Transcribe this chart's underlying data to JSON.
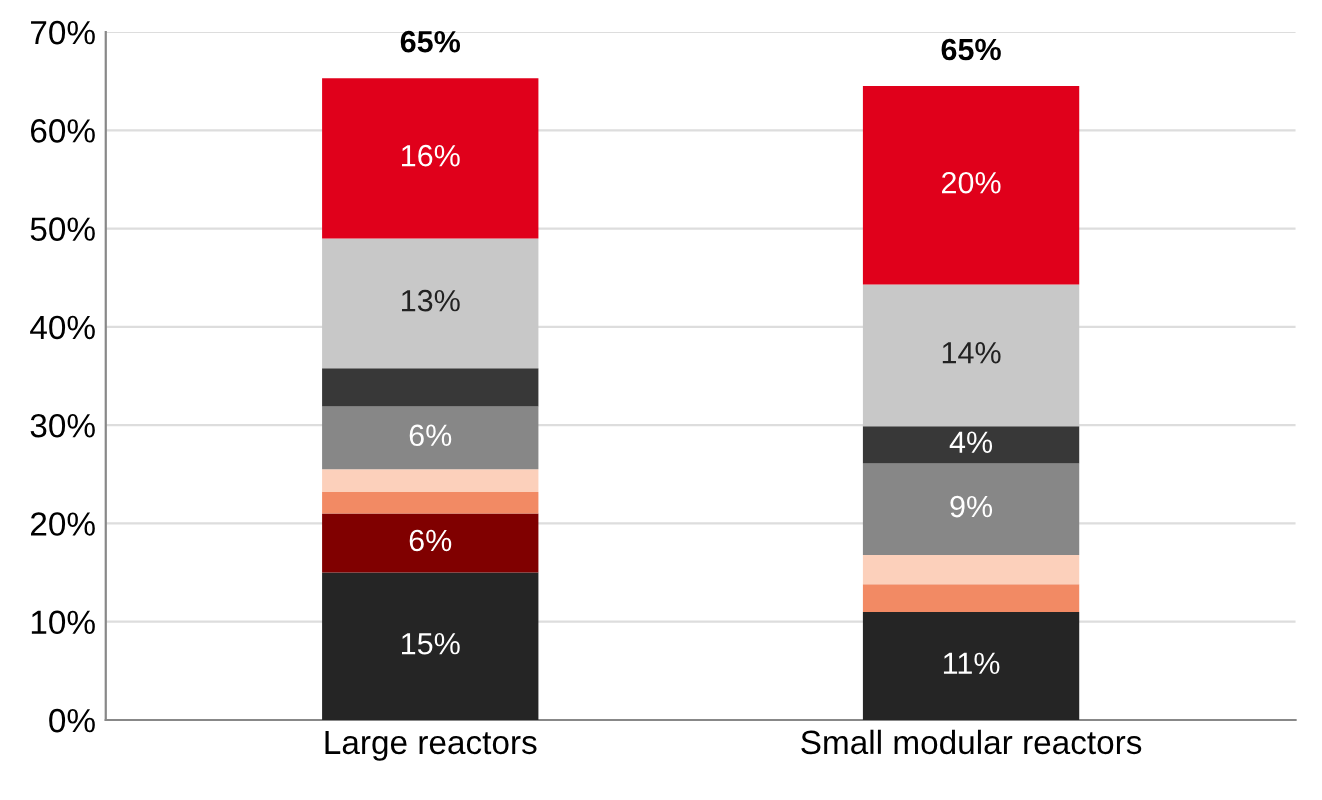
{
  "chart_data": {
    "type": "bar",
    "stacked": true,
    "categories": [
      "Large reactors",
      "Small modular reactors"
    ],
    "series": [
      {
        "color": "#252525",
        "values": [
          15,
          11
        ],
        "value_labels": [
          "15%",
          "11%"
        ]
      },
      {
        "color": "#800000",
        "values": [
          6,
          0
        ],
        "value_labels": [
          "6%",
          null
        ]
      },
      {
        "color": "#f28a64",
        "values": [
          2.2,
          2.8
        ],
        "value_labels": [
          null,
          null
        ]
      },
      {
        "color": "#fcd0bb",
        "values": [
          2.3,
          3
        ],
        "value_labels": [
          null,
          null
        ]
      },
      {
        "color": "#878787",
        "values": [
          6.4,
          9.3
        ],
        "value_labels": [
          "6%",
          "9%"
        ]
      },
      {
        "color": "#383838",
        "values": [
          3.9,
          3.8
        ],
        "value_labels": [
          null,
          "4%"
        ]
      },
      {
        "color": "#c8c8c8",
        "values": [
          13.2,
          14.4
        ],
        "value_labels": [
          "13%",
          "14%"
        ]
      },
      {
        "color": "#e0001b",
        "values": [
          16.3,
          20.2
        ],
        "value_labels": [
          "16%",
          "20%"
        ]
      }
    ],
    "totals": [
      "65%",
      "65%"
    ],
    "ylim": [
      0,
      70
    ],
    "yticks": [
      {
        "value": 0,
        "label": "0%"
      },
      {
        "value": 10,
        "label": "10%"
      },
      {
        "value": 20,
        "label": "20%"
      },
      {
        "value": 30,
        "label": "30%"
      },
      {
        "value": 40,
        "label": "40%"
      },
      {
        "value": 50,
        "label": "50%"
      },
      {
        "value": 60,
        "label": "60%"
      },
      {
        "value": 70,
        "label": "70%"
      }
    ],
    "grid": "y",
    "legend": false
  }
}
